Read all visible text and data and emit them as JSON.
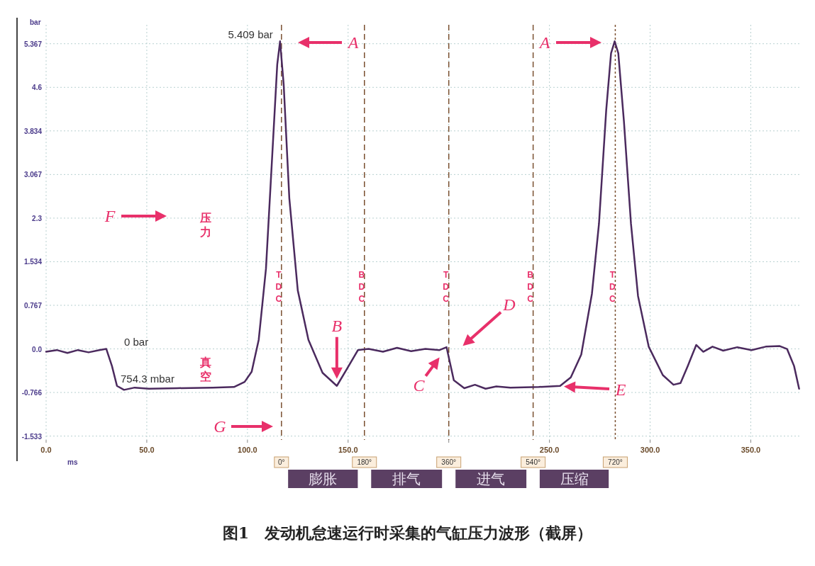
{
  "chart_data": {
    "type": "line",
    "xlabel": "ms",
    "ylabel": "bar",
    "xlim": [
      0,
      374.5
    ],
    "ylim": [
      -1.6,
      5.7
    ],
    "xticks": [
      {
        "value": 0,
        "label": "0.0"
      },
      {
        "value": 50,
        "label": "50.0"
      },
      {
        "value": 100,
        "label": "100.0"
      },
      {
        "value": 150,
        "label": "150.0"
      },
      {
        "value": 200,
        "label": null
      },
      {
        "value": 250,
        "label": "250.0"
      },
      {
        "value": 300,
        "label": "300.0"
      },
      {
        "value": 350,
        "label": "350.0"
      }
    ],
    "yticks": [
      {
        "value": -1.533,
        "label": "-1.533"
      },
      {
        "value": -0.766,
        "label": "-0.766"
      },
      {
        "value": 0,
        "label": "0.0"
      },
      0.767,
      1.534,
      2.3,
      3.067,
      3.834,
      4.6,
      5.367
    ],
    "grid": true,
    "line_style": "solid",
    "marker": "none",
    "x": [
      0,
      5.3,
      10.6,
      15.8,
      21.1,
      26.4,
      29.9,
      32.7,
      35.2,
      38.7,
      44.0,
      51.1,
      65.1,
      82.7,
      93.3,
      98.6,
      102.1,
      105.6,
      109.2,
      112.7,
      114.8,
      116.2,
      118.0,
      120.8,
      125.0,
      130.3,
      137.3,
      144.4,
      149.6,
      154.9,
      160.2,
      167.3,
      174.3,
      181.3,
      188.4,
      195.4,
      198.9,
      202.5,
      207.7,
      213.0,
      218.3,
      223.6,
      230.6,
      244.7,
      255.3,
      260.6,
      265.8,
      271.1,
      274.6,
      278.2,
      280.6,
      282.4,
      284.2,
      287.0,
      290.5,
      294.0,
      299.3,
      306.3,
      311.6,
      315.1,
      318.7,
      322.9,
      326.4,
      331.0,
      336.3,
      343.3,
      350.4,
      357.4,
      364.4,
      368.0,
      371.5,
      374.0
    ],
    "series": [
      {
        "color": "#4b2a5e",
        "values": [
          -0.05,
          -0.02,
          -0.07,
          -0.02,
          -0.06,
          -0.02,
          0.0,
          -0.3,
          -0.65,
          -0.72,
          -0.68,
          -0.7,
          -0.69,
          -0.68,
          -0.67,
          -0.58,
          -0.4,
          0.16,
          1.41,
          3.65,
          5.0,
          5.409,
          4.65,
          2.65,
          1.03,
          0.16,
          -0.42,
          -0.65,
          -0.34,
          -0.02,
          0.0,
          -0.05,
          0.02,
          -0.04,
          0.0,
          -0.02,
          0.03,
          -0.55,
          -0.69,
          -0.63,
          -0.7,
          -0.66,
          -0.68,
          -0.67,
          -0.65,
          -0.5,
          -0.1,
          0.97,
          2.2,
          4.2,
          5.2,
          5.41,
          5.2,
          4.0,
          2.2,
          0.93,
          0.04,
          -0.46,
          -0.63,
          -0.6,
          -0.3,
          0.07,
          -0.05,
          0.04,
          -0.03,
          0.03,
          -0.02,
          0.04,
          0.05,
          0.0,
          -0.3,
          -0.7
        ]
      }
    ],
    "ref_lines": [
      {
        "axis": "x",
        "value": 116.9,
        "color": "#7a5030",
        "line_style": "dashed"
      },
      {
        "axis": "x",
        "value": 158.1,
        "color": "#7a5030",
        "line_style": "dashed"
      },
      {
        "axis": "x",
        "value": 200,
        "color": "#7a5030",
        "line_style": "dashed"
      },
      {
        "axis": "x",
        "value": 241.9,
        "color": "#7a5030",
        "line_style": "dashed"
      },
      {
        "axis": "x",
        "value": 282.7,
        "color": "#7a5030",
        "line_style": "dotted"
      }
    ],
    "annotations": [
      {
        "text": "5.409 bar",
        "x": 116.2,
        "y": 5.41
      },
      "A",
      "A",
      {
        "text": "B",
        "x": 144.4,
        "y": -0.65
      },
      {
        "text": "C",
        "x": 197.5,
        "y": -0.05
      },
      "D",
      "E",
      "F",
      "G",
      "0 bar",
      "754.3 mbar",
      "压力",
      "真空",
      {
        "text": "TDC",
        "x": 116.9,
        "y": 1.1
      },
      {
        "text": "BDC",
        "x": 158.1,
        "y": 1.1
      },
      {
        "text": "TDC",
        "x": 200,
        "y": 1.1
      },
      {
        "text": "BDC",
        "x": 241.9,
        "y": 1.1
      },
      {
        "text": "TDC",
        "x": 282.7,
        "y": 1.1
      },
      "0°",
      "180°",
      "360°",
      "540°",
      "720°",
      "膨胀",
      "排气",
      "进气",
      "压缩",
      "图1　发动机怠速运行时采集的气缸压力波形（截屏）"
    ]
  }
}
